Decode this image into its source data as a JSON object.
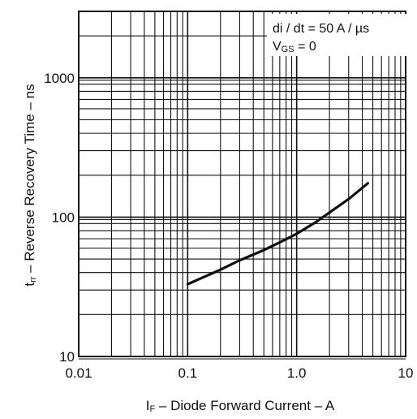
{
  "chart_data": {
    "type": "line",
    "x_scale": "log",
    "y_scale": "log",
    "xlim": [
      0.01,
      10
    ],
    "ylim": [
      10,
      3000
    ],
    "grid": true,
    "x_ticks": [
      "0.01",
      "0.1",
      "1.0",
      "10"
    ],
    "y_ticks": [
      "10",
      "100",
      "1000"
    ],
    "xlabel": {
      "sym": "I",
      "sub": "F",
      "rest": " – Diode Forward Current – A"
    },
    "ylabel": {
      "sym": "t",
      "sub": "rr",
      "rest": " – Reverse Recovery Time – ns"
    },
    "annotation": {
      "line1": "di / dt = 50 A / µs",
      "line2_sym": "V",
      "line2_sub": "GS",
      "line2_rest": " = 0"
    },
    "series": [
      {
        "x": [
          0.1,
          0.2,
          0.3,
          0.5,
          0.7,
          1.0,
          1.5,
          2.0,
          3.0,
          4.5
        ],
        "y": [
          33,
          42,
          49,
          58,
          66,
          76,
          92,
          108,
          135,
          175
        ]
      }
    ]
  }
}
